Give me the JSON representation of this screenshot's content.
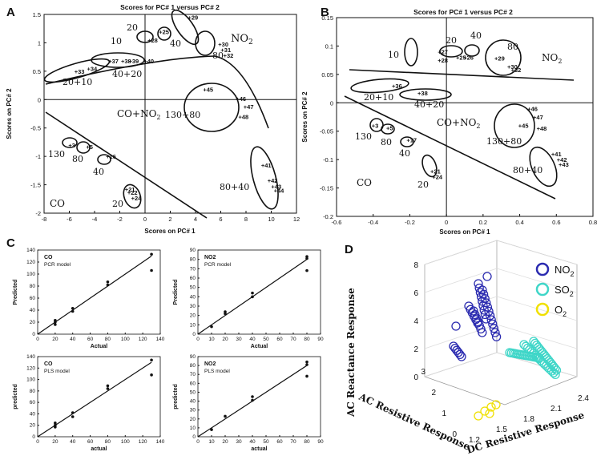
{
  "panels": {
    "A": "A",
    "B": "B",
    "C": "C",
    "D": "D"
  },
  "colors": {
    "no2": "#2b2bb0",
    "so2": "#3fd6c8",
    "o2": "#f0e000",
    "ink": "#111111"
  },
  "chart_data": [
    {
      "type": "scatter",
      "id": "A",
      "title": "Scores for PC# 1 versus PC# 2",
      "xlabel": "Scores on PC# 1",
      "ylabel": "Scores on PC# 2",
      "xlim": [
        -8,
        12
      ],
      "ylim": [
        -2,
        1.5
      ],
      "xticks": [
        "-8",
        "-6",
        "-4",
        "-2",
        "0",
        "2",
        "4",
        "6",
        "8",
        "10",
        "12"
      ],
      "yticks": [
        "-2",
        "-1.5",
        "-1",
        "-0.5",
        "0",
        "0.5",
        "1",
        "1.5"
      ],
      "points": [
        {
          "label": "+33",
          "x": -5.2,
          "y": 0.5
        },
        {
          "label": "+34",
          "x": -4.2,
          "y": 0.55
        },
        {
          "label": "+37",
          "x": -2.5,
          "y": 0.68
        },
        {
          "label": "+38",
          "x": -1.5,
          "y": 0.68
        },
        {
          "label": "+39",
          "x": -0.9,
          "y": 0.68
        },
        {
          "label": "+40",
          "x": 0.3,
          "y": 0.68
        },
        {
          "label": "+28",
          "x": 0.6,
          "y": 1.05
        },
        {
          "label": "+25",
          "x": 1.5,
          "y": 1.2
        },
        {
          "label": "+29",
          "x": 3.8,
          "y": 1.45
        },
        {
          "label": "+30",
          "x": 6.2,
          "y": 0.98
        },
        {
          "label": "+31",
          "x": 6.4,
          "y": 0.88
        },
        {
          "label": "+32",
          "x": 6.6,
          "y": 0.78
        },
        {
          "label": "+45",
          "x": 5.0,
          "y": 0.18
        },
        {
          "label": "+46",
          "x": 7.6,
          "y": 0.02
        },
        {
          "label": "+47",
          "x": 8.2,
          "y": -0.12
        },
        {
          "label": "+48",
          "x": 7.8,
          "y": -0.3
        },
        {
          "label": "+41",
          "x": 9.6,
          "y": -1.15
        },
        {
          "label": "+42",
          "x": 10.1,
          "y": -1.42
        },
        {
          "label": "+43",
          "x": 10.4,
          "y": -1.53
        },
        {
          "label": "+44",
          "x": 10.6,
          "y": -1.6
        },
        {
          "label": "+3",
          "x": -5.8,
          "y": -0.8
        },
        {
          "label": "+5",
          "x": -4.4,
          "y": -0.83
        },
        {
          "label": "+16",
          "x": -2.7,
          "y": -1.0
        },
        {
          "label": "+21",
          "x": -1.2,
          "y": -1.58
        },
        {
          "label": "+22",
          "x": -1.0,
          "y": -1.63
        },
        {
          "label": "+24",
          "x": -0.7,
          "y": -1.73
        }
      ],
      "annotations": [
        "20",
        "10",
        "40",
        "80",
        "NO2",
        "40+20",
        "20+10",
        "130+80",
        "CO+NO2",
        "130",
        "80",
        "40",
        "80+40",
        "20",
        "CO"
      ]
    },
    {
      "type": "scatter",
      "id": "B",
      "title": "Scores for PC# 1 versus PC# 2",
      "xlabel": "Scores on PC# 1",
      "ylabel": "Scores on PC# 2",
      "xlim": [
        -0.6,
        0.8
      ],
      "ylim": [
        -0.2,
        0.15
      ],
      "xticks": [
        "-0.6",
        "-0.4",
        "-0.2",
        "0",
        "0.2",
        "0.4",
        "0.6",
        "0.8"
      ],
      "yticks": [
        "-0.2",
        "-0.15",
        "-0.1",
        "-0.05",
        "0",
        "0.05",
        "0.1",
        "0.15"
      ],
      "points": [
        {
          "label": "+27",
          "x": -0.02,
          "y": 0.09
        },
        {
          "label": "+28",
          "x": -0.02,
          "y": 0.075
        },
        {
          "label": "+25",
          "x": 0.08,
          "y": 0.08
        },
        {
          "label": "+26",
          "x": 0.12,
          "y": 0.08
        },
        {
          "label": "+29",
          "x": 0.29,
          "y": 0.079
        },
        {
          "label": "+30",
          "x": 0.36,
          "y": 0.064
        },
        {
          "label": "+32",
          "x": 0.38,
          "y": 0.058
        },
        {
          "label": "+36",
          "x": -0.27,
          "y": 0.03
        },
        {
          "label": "+38",
          "x": -0.13,
          "y": 0.017
        },
        {
          "label": "+46",
          "x": 0.47,
          "y": -0.01
        },
        {
          "label": "+47",
          "x": 0.5,
          "y": -0.025
        },
        {
          "label": "+45",
          "x": 0.42,
          "y": -0.04
        },
        {
          "label": "+48",
          "x": 0.52,
          "y": -0.045
        },
        {
          "label": "+41",
          "x": 0.6,
          "y": -0.09
        },
        {
          "label": "+42",
          "x": 0.63,
          "y": -0.1
        },
        {
          "label": "+43",
          "x": 0.64,
          "y": -0.108
        },
        {
          "label": "+3",
          "x": -0.39,
          "y": -0.04
        },
        {
          "label": "+5",
          "x": -0.31,
          "y": -0.044
        },
        {
          "label": "+17",
          "x": -0.19,
          "y": -0.065
        },
        {
          "label": "+21",
          "x": -0.06,
          "y": -0.12
        },
        {
          "label": "+24",
          "x": -0.05,
          "y": -0.13
        }
      ],
      "annotations": [
        "10",
        "20",
        "40",
        "80",
        "NO2",
        "20+10",
        "40+20",
        "CO+NO2",
        "130+80",
        "130",
        "80",
        "40",
        "80+40",
        "CO",
        "20"
      ]
    },
    {
      "type": "scatter",
      "id": "C1",
      "model": "CO",
      "model_sub": "PCR model",
      "xlabel": "Actual",
      "ylabel": "Predicted",
      "xlim": [
        0,
        140
      ],
      "ylim": [
        0,
        140
      ],
      "xticks": [
        "0",
        "20",
        "40",
        "60",
        "80",
        "100",
        "120",
        "140"
      ],
      "yticks": [
        "0",
        "20",
        "40",
        "60",
        "80",
        "100",
        "120",
        "140"
      ],
      "x": [
        20,
        20,
        20,
        40,
        40,
        80,
        80,
        130,
        130
      ],
      "y": [
        16,
        20,
        23,
        38,
        43,
        82,
        87,
        106,
        133
      ],
      "fit": [
        [
          0,
          0
        ],
        [
          130,
          130
        ]
      ]
    },
    {
      "type": "scatter",
      "id": "C2",
      "model": "NO2",
      "model_sub": "PCR model",
      "xlabel": "Actual",
      "ylabel": "Predicted",
      "xlim": [
        0,
        90
      ],
      "ylim": [
        0,
        90
      ],
      "xticks": [
        "0",
        "10",
        "20",
        "30",
        "40",
        "50",
        "60",
        "70",
        "80",
        "90"
      ],
      "yticks": [
        "0",
        "10",
        "20",
        "30",
        "40",
        "50",
        "60",
        "70",
        "80",
        "90"
      ],
      "x": [
        10,
        20,
        20,
        40,
        40,
        80,
        80,
        80
      ],
      "y": [
        8,
        22,
        24,
        40,
        44,
        68,
        81,
        83
      ],
      "fit": [
        [
          0,
          0
        ],
        [
          80,
          80
        ]
      ]
    },
    {
      "type": "scatter",
      "id": "C3",
      "model": "CO",
      "model_sub": "PLS model",
      "xlabel": "actual",
      "ylabel": "predicted",
      "xlim": [
        0,
        140
      ],
      "ylim": [
        0,
        140
      ],
      "xticks": [
        "0",
        "20",
        "40",
        "60",
        "80",
        "100",
        "120",
        "140"
      ],
      "yticks": [
        "0",
        "20",
        "40",
        "60",
        "80",
        "100",
        "120",
        "140"
      ],
      "x": [
        20,
        20,
        20,
        40,
        40,
        80,
        80,
        130,
        130
      ],
      "y": [
        17,
        20,
        24,
        35,
        42,
        84,
        89,
        108,
        134
      ],
      "fit": [
        [
          0,
          0
        ],
        [
          130,
          130
        ]
      ]
    },
    {
      "type": "scatter",
      "id": "C4",
      "model": "NO2",
      "model_sub": "PLS model",
      "xlabel": "actual",
      "ylabel": "predicted",
      "xlim": [
        0,
        90
      ],
      "ylim": [
        0,
        90
      ],
      "xticks": [
        "0",
        "10",
        "20",
        "30",
        "40",
        "50",
        "60",
        "70",
        "80",
        "90"
      ],
      "yticks": [
        "0",
        "10",
        "20",
        "30",
        "40",
        "50",
        "60",
        "70",
        "80",
        "90"
      ],
      "x": [
        10,
        20,
        40,
        40,
        80,
        80,
        80
      ],
      "y": [
        8,
        23,
        41,
        45,
        68,
        81,
        84
      ],
      "fit": [
        [
          0,
          0
        ],
        [
          80,
          80
        ]
      ]
    },
    {
      "type": "scatter3d",
      "id": "D",
      "xlabel": "DC Resistive Response",
      "ylabel": "AC Resistive Response",
      "zlabel": "AC Reactance Response",
      "xticks": [
        "1.2",
        "1.5",
        "1.8",
        "2.1",
        "2.4"
      ],
      "yticks": [
        "0",
        "1",
        "2",
        "3"
      ],
      "zticks": [
        "0",
        "2",
        "4",
        "6",
        "8"
      ],
      "legend": [
        {
          "name": "NO2",
          "sub": "2",
          "base": "NO"
        },
        {
          "name": "SO2",
          "sub": "2",
          "base": "SO"
        },
        {
          "name": "O2",
          "sub": "2",
          "base": "O"
        }
      ]
    }
  ]
}
